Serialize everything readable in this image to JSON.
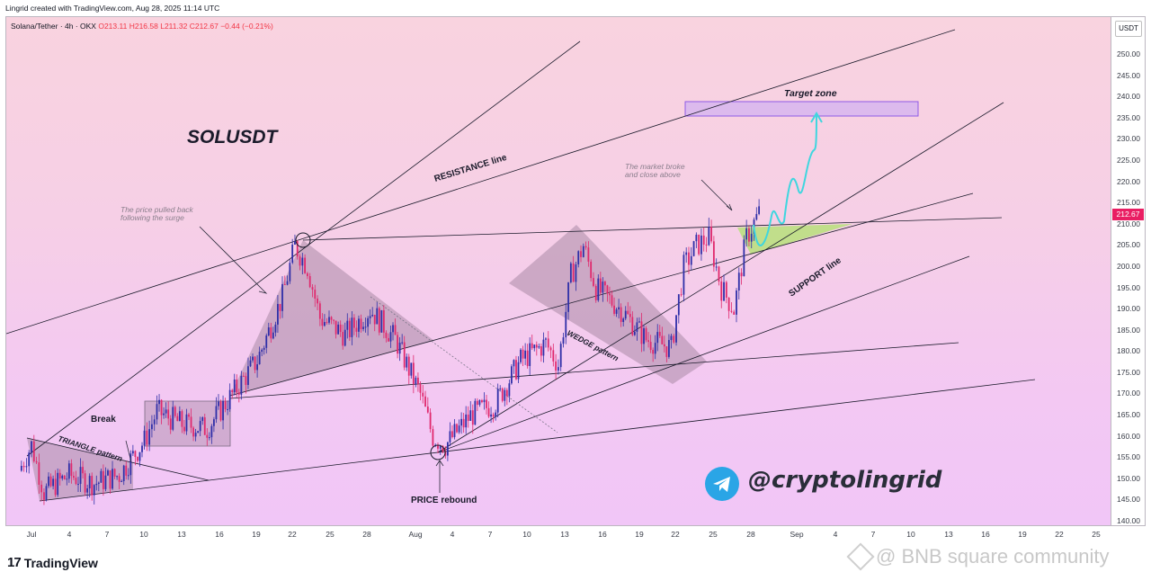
{
  "header": {
    "created_by": "Lingrid created with TradingView.com, Aug 28, 2025 11:14 UTC"
  },
  "legend": {
    "symbol": "Solana/Tether · 4h · OKX",
    "open": "O213.11",
    "high": "H216.58",
    "low": "L211.32",
    "close": "C212.67",
    "change": "−0.44 (−0.21%)"
  },
  "price_axis": {
    "unit": "USDT",
    "ticks": [
      "250.00",
      "245.00",
      "240.00",
      "235.00",
      "230.00",
      "225.00",
      "220.00",
      "215.00",
      "210.00",
      "205.00",
      "200.00",
      "195.00",
      "190.00",
      "185.00",
      "180.00",
      "175.00",
      "170.00",
      "165.00",
      "160.00",
      "155.00",
      "150.00",
      "145.00",
      "140.00"
    ],
    "last_price": "212.67"
  },
  "time_axis": {
    "ticks": [
      "Jul",
      "4",
      "7",
      "10",
      "13",
      "16",
      "19",
      "22",
      "25",
      "28",
      "Aug",
      "4",
      "7",
      "10",
      "13",
      "16",
      "19",
      "22",
      "25",
      "28",
      "Sep",
      "4",
      "7",
      "10",
      "13",
      "16",
      "19",
      "22",
      "25"
    ]
  },
  "annotations": {
    "title": "SOLUSDT",
    "pullback": "The price pulled back following the surge",
    "resistance": "RESISTANCE line",
    "market_broke": "The market broke and close above",
    "target": "Target zone",
    "support": "SUPPORT line",
    "wedge": "WEDGE pattern",
    "triangle": "TRIANGLE pattern",
    "break": "Break",
    "rebound": "PRICE rebound"
  },
  "brand": {
    "tradingview": "TradingView",
    "handle": "@cryptolingrid",
    "watermark": "@ BNB square community"
  },
  "colors": {
    "up": "#2f2fa8",
    "down": "#e0296d",
    "pattern_fill": "#a98aa6",
    "target_fill": "#c4a7f5",
    "forecast": "#3fd6df",
    "zone_green": "#b7e07a"
  },
  "chart_data": {
    "type": "candlestick",
    "title": "SOLUSDT",
    "symbol": "Solana/Tether",
    "interval": "4h",
    "exchange": "OKX",
    "ylim": [
      140,
      253
    ],
    "y_unit": "USDT",
    "x_range": [
      "2025-06-30",
      "2025-09-26"
    ],
    "ohlc_last": {
      "open": 213.11,
      "high": 216.58,
      "low": 211.32,
      "close": 212.67,
      "change": -0.44,
      "change_pct": -0.21
    },
    "series_approx_close": [
      {
        "date": "2025-06-30",
        "close": 152
      },
      {
        "date": "2025-07-01",
        "close": 158
      },
      {
        "date": "2025-07-02",
        "close": 147
      },
      {
        "date": "2025-07-04",
        "close": 151
      },
      {
        "date": "2025-07-06",
        "close": 149
      },
      {
        "date": "2025-07-08",
        "close": 151
      },
      {
        "date": "2025-07-10",
        "close": 159
      },
      {
        "date": "2025-07-11",
        "close": 166
      },
      {
        "date": "2025-07-13",
        "close": 163
      },
      {
        "date": "2025-07-15",
        "close": 162
      },
      {
        "date": "2025-07-17",
        "close": 170
      },
      {
        "date": "2025-07-19",
        "close": 178
      },
      {
        "date": "2025-07-21",
        "close": 193
      },
      {
        "date": "2025-07-22",
        "close": 205
      },
      {
        "date": "2025-07-23",
        "close": 200
      },
      {
        "date": "2025-07-24",
        "close": 188
      },
      {
        "date": "2025-07-26",
        "close": 184
      },
      {
        "date": "2025-07-28",
        "close": 190
      },
      {
        "date": "2025-07-30",
        "close": 183
      },
      {
        "date": "2025-08-01",
        "close": 170
      },
      {
        "date": "2025-08-02",
        "close": 160
      },
      {
        "date": "2025-08-03",
        "close": 158
      },
      {
        "date": "2025-08-05",
        "close": 165
      },
      {
        "date": "2025-08-07",
        "close": 168
      },
      {
        "date": "2025-08-09",
        "close": 178
      },
      {
        "date": "2025-08-11",
        "close": 182
      },
      {
        "date": "2025-08-12",
        "close": 177
      },
      {
        "date": "2025-08-13",
        "close": 198
      },
      {
        "date": "2025-08-14",
        "close": 205
      },
      {
        "date": "2025-08-15",
        "close": 195
      },
      {
        "date": "2025-08-17",
        "close": 190
      },
      {
        "date": "2025-08-19",
        "close": 183
      },
      {
        "date": "2025-08-21",
        "close": 181
      },
      {
        "date": "2025-08-22",
        "close": 200
      },
      {
        "date": "2025-08-23",
        "close": 205
      },
      {
        "date": "2025-08-24",
        "close": 207
      },
      {
        "date": "2025-08-25",
        "close": 195
      },
      {
        "date": "2025-08-26",
        "close": 190
      },
      {
        "date": "2025-08-27",
        "close": 207
      },
      {
        "date": "2025-08-28",
        "close": 212.67
      }
    ],
    "target_zone": [
      235.5,
      239
    ],
    "annotation_points": {
      "pullback_high": {
        "date": "2025-07-22",
        "price": 206.5
      },
      "rebound_low": {
        "date": "2025-08-02",
        "price": 156
      }
    }
  }
}
